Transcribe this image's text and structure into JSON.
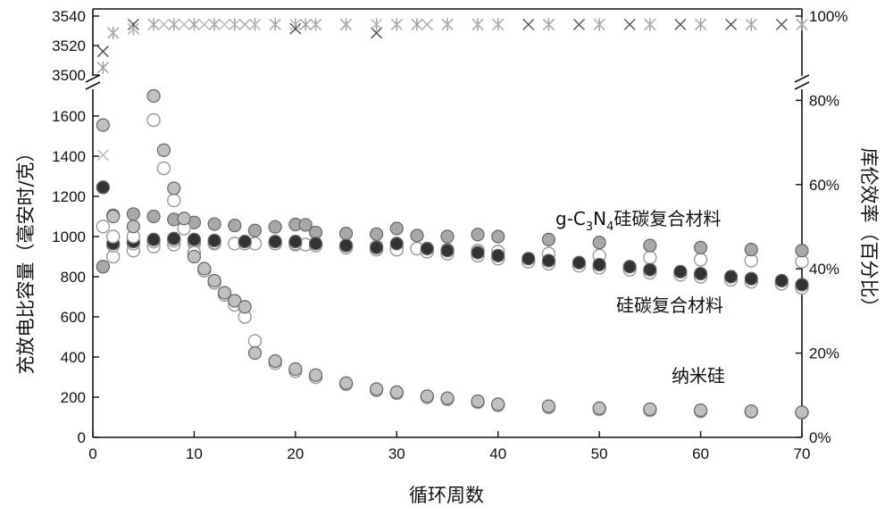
{
  "chart_data": {
    "type": "scatter",
    "title": "",
    "xlabel": "循环周数",
    "ylabel": "充放电比容量（毫安时/克）",
    "y2label": "库伦效率（百分比）",
    "xlim": [
      0,
      70
    ],
    "ylim_lower": [
      0,
      1800
    ],
    "ylim_upper": [
      3490,
      3540
    ],
    "y2lim": [
      0,
      100
    ],
    "x_ticks": [
      "0",
      "10",
      "20",
      "30",
      "40",
      "50",
      "60",
      "70"
    ],
    "y_ticks_lower": [
      "0",
      "200",
      "400",
      "600",
      "800",
      "1000",
      "1200",
      "1400",
      "1600"
    ],
    "y_ticks_upper": [
      "3500",
      "3520",
      "3540"
    ],
    "y2_ticks": [
      "0%",
      "20%",
      "40%",
      "60%",
      "80%",
      "100%"
    ],
    "grid": false,
    "annotations": {
      "gc3n4_prefix": "g-C",
      "gc3n4_sub1": "3",
      "gc3n4_mid": "N",
      "gc3n4_sub2": "4",
      "gc3n4_suffix": "硅碳复合材料",
      "sic": "硅碳复合材料",
      "nanosi": "纳米硅"
    },
    "series": [
      {
        "label": "g-C3N4硅碳复合材料",
        "colors": [
          "#a8a8a8",
          "#ffffff"
        ],
        "x": [
          1,
          2,
          4,
          6,
          8,
          10,
          12,
          14,
          16,
          18,
          20,
          21,
          22,
          25,
          28,
          30,
          32,
          35,
          38,
          40,
          45,
          50,
          55,
          60,
          65,
          70
        ],
        "charge": [
          850,
          1105,
          1112,
          1100,
          1085,
          1070,
          1062,
          1055,
          1030,
          1048,
          1060,
          1058,
          1020,
          1015,
          1012,
          1040,
          1005,
          1000,
          1010,
          1000,
          985,
          970,
          955,
          945,
          935,
          930
        ],
        "discharge": [
          850,
          900,
          930,
          950,
          960,
          965,
          965,
          965,
          965,
          965,
          960,
          960,
          958,
          955,
          950,
          945,
          940,
          935,
          930,
          925,
          915,
          905,
          895,
          885,
          880,
          875
        ],
        "ce": [
          3505,
          96,
          97,
          98,
          98,
          98,
          98,
          98,
          98,
          98,
          98,
          98,
          98,
          98,
          98,
          98,
          98,
          98,
          98,
          98,
          98,
          98,
          98,
          98,
          98,
          98
        ]
      },
      {
        "label": "硅碳复合材料",
        "colors": [
          "#333333",
          "#ffffff"
        ],
        "x": [
          1,
          2,
          4,
          6,
          8,
          10,
          12,
          15,
          18,
          20,
          22,
          25,
          28,
          30,
          33,
          35,
          38,
          40,
          43,
          45,
          48,
          50,
          53,
          55,
          58,
          60,
          63,
          65,
          68,
          70
        ],
        "charge": [
          1245,
          965,
          975,
          985,
          990,
          985,
          980,
          975,
          975,
          975,
          965,
          955,
          945,
          965,
          940,
          930,
          920,
          905,
          890,
          880,
          870,
          860,
          850,
          835,
          825,
          815,
          800,
          790,
          780,
          760
        ],
        "discharge": [
          1245,
          955,
          965,
          975,
          980,
          975,
          970,
          965,
          965,
          965,
          955,
          945,
          935,
          935,
          925,
          915,
          905,
          890,
          875,
          865,
          855,
          845,
          835,
          820,
          810,
          800,
          785,
          775,
          765,
          745
        ],
        "ce": [
          3516,
          96,
          98,
          98,
          98,
          98,
          98,
          98,
          98,
          97,
          98,
          98,
          96,
          98,
          98,
          98,
          98,
          98,
          98,
          98,
          98,
          98,
          98,
          98,
          98,
          98,
          98,
          98,
          98,
          98
        ]
      },
      {
        "label": "纳米硅",
        "colors": [
          "#c0c0c0",
          "#ffffff"
        ],
        "x": [
          1,
          2,
          4,
          6,
          7,
          8,
          9,
          10,
          11,
          12,
          13,
          14,
          15,
          16,
          18,
          20,
          22,
          25,
          28,
          30,
          33,
          35,
          38,
          40,
          45,
          50,
          55,
          60,
          65,
          70
        ],
        "charge": [
          1555,
          1100,
          1050,
          1700,
          1430,
          1240,
          1090,
          900,
          840,
          780,
          720,
          680,
          650,
          420,
          380,
          340,
          310,
          270,
          240,
          225,
          205,
          195,
          180,
          165,
          155,
          145,
          140,
          135,
          130,
          125
        ],
        "discharge": [
          1050,
          1000,
          1000,
          1580,
          1340,
          1180,
          1040,
          920,
          830,
          770,
          710,
          660,
          600,
          480,
          370,
          330,
          300,
          265,
          235,
          220,
          200,
          190,
          175,
          160,
          150,
          140,
          135,
          130,
          128,
          123
        ],
        "ce": [
          67,
          96,
          97,
          98,
          98,
          98,
          98,
          98,
          98,
          98,
          98,
          98,
          98,
          98,
          98,
          98,
          98,
          98,
          98,
          98,
          98,
          98,
          98,
          98,
          98,
          98,
          98,
          98,
          98,
          98
        ]
      }
    ]
  }
}
